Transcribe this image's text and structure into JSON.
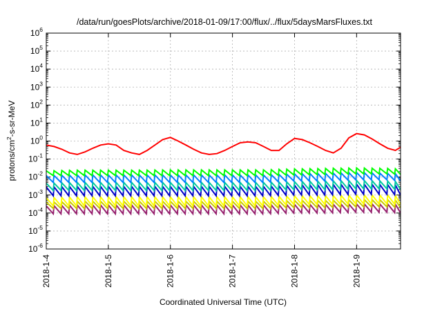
{
  "chart_data": {
    "type": "line",
    "title": "/data/run/goesPlots/archive/2018-01-09/17:00/flux/../flux/5daysMarsFluxes.txt",
    "xlabel": "Coordinated Universal Time (UTC)",
    "ylabel": "protons/cm²-s-sr-MeV",
    "ylabel_parts": {
      "before": "protons/cm",
      "sup": "2",
      "after": "-s-sr-MeV"
    },
    "y_scale": "log",
    "ylim": [
      1e-06,
      1000000.0
    ],
    "y_tick_base": "10",
    "y_tick_exponents": [
      "-6",
      "-5",
      "-4",
      "-3",
      "-2",
      "-1",
      "0",
      "1",
      "2",
      "3",
      "4",
      "5",
      "6"
    ],
    "xlim": [
      "2018-01-04T00:00",
      "2018-01-09T17:00"
    ],
    "x_ticks": [
      "2018-1-4",
      "2018-1-5",
      "2018-1-6",
      "2018-1-7",
      "2018-1-8",
      "2018-1-9"
    ],
    "grid": true,
    "legend": "none",
    "series": [
      {
        "color": "#ff0000",
        "x": [
          "2018-01-04T00:00",
          "2018-01-04T03:00",
          "2018-01-04T06:00",
          "2018-01-04T09:00",
          "2018-01-04T12:00",
          "2018-01-04T15:00",
          "2018-01-04T18:00",
          "2018-01-04T21:00",
          "2018-01-05T00:00",
          "2018-01-05T03:00",
          "2018-01-05T06:00",
          "2018-01-05T09:00",
          "2018-01-05T12:00",
          "2018-01-05T15:00",
          "2018-01-05T18:00",
          "2018-01-05T21:00",
          "2018-01-06T00:00",
          "2018-01-06T03:00",
          "2018-01-06T06:00",
          "2018-01-06T09:00",
          "2018-01-06T12:00",
          "2018-01-06T15:00",
          "2018-01-06T18:00",
          "2018-01-06T21:00",
          "2018-01-07T00:00",
          "2018-01-07T03:00",
          "2018-01-07T06:00",
          "2018-01-07T09:00",
          "2018-01-07T12:00",
          "2018-01-07T15:00",
          "2018-01-07T18:00",
          "2018-01-07T21:00",
          "2018-01-08T00:00",
          "2018-01-08T03:00",
          "2018-01-08T06:00",
          "2018-01-08T09:00",
          "2018-01-08T12:00",
          "2018-01-08T15:00",
          "2018-01-08T18:00",
          "2018-01-08T21:00",
          "2018-01-09T00:00",
          "2018-01-09T03:00",
          "2018-01-09T06:00",
          "2018-01-09T09:00",
          "2018-01-09T12:00",
          "2018-01-09T15:00",
          "2018-01-09T17:00"
        ],
        "y": [
          0.6,
          0.5,
          0.35,
          0.22,
          0.18,
          0.25,
          0.4,
          0.6,
          0.7,
          0.6,
          0.3,
          0.22,
          0.18,
          0.3,
          0.6,
          1.2,
          1.6,
          1.0,
          0.6,
          0.35,
          0.22,
          0.18,
          0.2,
          0.3,
          0.5,
          0.8,
          0.9,
          0.8,
          0.5,
          0.3,
          0.3,
          0.7,
          1.4,
          1.2,
          0.8,
          0.5,
          0.3,
          0.22,
          0.4,
          1.5,
          2.6,
          2.2,
          1.3,
          0.7,
          0.4,
          0.3,
          0.45
        ]
      },
      {
        "color": "#00ff00",
        "x": [
          "2018-01-04T00:00",
          "2018-01-04T12:00",
          "2018-01-05T00:00",
          "2018-01-05T12:00",
          "2018-01-06T00:00",
          "2018-01-06T12:00",
          "2018-01-07T00:00",
          "2018-01-07T12:00",
          "2018-01-08T00:00",
          "2018-01-08T12:00",
          "2018-01-09T00:00",
          "2018-01-09T12:00",
          "2018-01-09T17:00"
        ],
        "y_low": [
          0.012,
          0.012,
          0.012,
          0.012,
          0.012,
          0.012,
          0.012,
          0.012,
          0.013,
          0.014,
          0.015,
          0.015,
          0.014
        ],
        "y_high": [
          0.022,
          0.024,
          0.024,
          0.024,
          0.025,
          0.025,
          0.025,
          0.025,
          0.028,
          0.03,
          0.032,
          0.03,
          0.028
        ]
      },
      {
        "color": "#0080ff",
        "x": [
          "2018-01-04T00:00",
          "2018-01-04T12:00",
          "2018-01-05T00:00",
          "2018-01-05T12:00",
          "2018-01-06T00:00",
          "2018-01-06T12:00",
          "2018-01-07T00:00",
          "2018-01-07T12:00",
          "2018-01-08T00:00",
          "2018-01-08T12:00",
          "2018-01-09T00:00",
          "2018-01-09T12:00",
          "2018-01-09T17:00"
        ],
        "y_low": [
          0.005,
          0.005,
          0.005,
          0.005,
          0.005,
          0.005,
          0.005,
          0.005,
          0.006,
          0.006,
          0.007,
          0.007,
          0.006
        ],
        "y_high": [
          0.012,
          0.013,
          0.013,
          0.013,
          0.013,
          0.013,
          0.013,
          0.013,
          0.015,
          0.016,
          0.018,
          0.016,
          0.015
        ]
      },
      {
        "color": "#00c8a0",
        "x": [
          "2018-01-04T00:00",
          "2018-01-04T12:00",
          "2018-01-05T00:00",
          "2018-01-05T12:00",
          "2018-01-06T00:00",
          "2018-01-06T12:00",
          "2018-01-07T00:00",
          "2018-01-07T12:00",
          "2018-01-08T00:00",
          "2018-01-08T12:00",
          "2018-01-09T00:00",
          "2018-01-09T12:00",
          "2018-01-09T17:00"
        ],
        "y_low": [
          0.0018,
          0.0018,
          0.0018,
          0.0018,
          0.0018,
          0.0018,
          0.0018,
          0.0018,
          0.002,
          0.002,
          0.0022,
          0.0022,
          0.002
        ],
        "y_high": [
          0.0045,
          0.005,
          0.005,
          0.005,
          0.005,
          0.005,
          0.005,
          0.005,
          0.0055,
          0.006,
          0.0065,
          0.006,
          0.0055
        ]
      },
      {
        "color": "#0000c8",
        "x": [
          "2018-01-04T00:00",
          "2018-01-04T12:00",
          "2018-01-05T00:00",
          "2018-01-05T12:00",
          "2018-01-06T00:00",
          "2018-01-06T12:00",
          "2018-01-07T00:00",
          "2018-01-07T12:00",
          "2018-01-08T00:00",
          "2018-01-08T12:00",
          "2018-01-09T00:00",
          "2018-01-09T12:00",
          "2018-01-09T17:00"
        ],
        "y_low": [
          0.0009,
          0.0009,
          0.0009,
          0.0009,
          0.0009,
          0.0009,
          0.0009,
          0.0009,
          0.001,
          0.001,
          0.0011,
          0.0011,
          0.001
        ],
        "y_high": [
          0.0028,
          0.003,
          0.003,
          0.003,
          0.003,
          0.003,
          0.003,
          0.003,
          0.0035,
          0.0038,
          0.004,
          0.0038,
          0.0035
        ]
      },
      {
        "color": "#ffff00",
        "x": [
          "2018-01-04T00:00",
          "2018-01-04T12:00",
          "2018-01-05T00:00",
          "2018-01-05T12:00",
          "2018-01-06T00:00",
          "2018-01-06T12:00",
          "2018-01-07T00:00",
          "2018-01-07T12:00",
          "2018-01-08T00:00",
          "2018-01-08T12:00",
          "2018-01-09T00:00",
          "2018-01-09T12:00",
          "2018-01-09T17:00"
        ],
        "y_low": [
          0.00025,
          0.00025,
          0.00025,
          0.00025,
          0.00025,
          0.00025,
          0.00025,
          0.00025,
          0.0003,
          0.0003,
          0.00032,
          0.00032,
          0.0003
        ],
        "y_high": [
          0.0007,
          0.0008,
          0.0008,
          0.0008,
          0.0008,
          0.0008,
          0.0008,
          0.0008,
          0.0009,
          0.0009,
          0.001,
          0.001,
          0.0009
        ]
      },
      {
        "color": "#c8c800",
        "x": [
          "2018-01-04T00:00",
          "2018-01-04T12:00",
          "2018-01-05T00:00",
          "2018-01-05T12:00",
          "2018-01-06T00:00",
          "2018-01-06T12:00",
          "2018-01-07T00:00",
          "2018-01-07T12:00",
          "2018-01-08T00:00",
          "2018-01-08T12:00",
          "2018-01-09T00:00",
          "2018-01-09T12:00",
          "2018-01-09T17:00"
        ],
        "y_low": [
          0.00018,
          0.00018,
          0.00018,
          0.00018,
          0.00018,
          0.00018,
          0.00018,
          0.00018,
          0.0002,
          0.0002,
          0.00022,
          0.00022,
          0.0002
        ],
        "y_high": [
          0.0004,
          0.00045,
          0.00045,
          0.00045,
          0.00045,
          0.00045,
          0.00045,
          0.00045,
          0.0005,
          0.0005,
          0.00055,
          0.00055,
          0.0005
        ]
      },
      {
        "color": "#96206e",
        "x": [
          "2018-01-04T00:00",
          "2018-01-04T12:00",
          "2018-01-05T00:00",
          "2018-01-05T12:00",
          "2018-01-06T00:00",
          "2018-01-06T12:00",
          "2018-01-07T00:00",
          "2018-01-07T12:00",
          "2018-01-08T00:00",
          "2018-01-08T12:00",
          "2018-01-09T00:00",
          "2018-01-09T12:00",
          "2018-01-09T17:00"
        ],
        "y_low": [
          9e-05,
          9e-05,
          9e-05,
          9e-05,
          9e-05,
          9e-05,
          9e-05,
          9e-05,
          0.0001,
          0.0001,
          0.00011,
          0.00011,
          0.0001
        ],
        "y_high": [
          0.00025,
          0.00028,
          0.00028,
          0.00028,
          0.00028,
          0.00028,
          0.00028,
          0.00028,
          0.0003,
          0.0003,
          0.00032,
          0.00032,
          0.0003
        ]
      }
    ]
  }
}
